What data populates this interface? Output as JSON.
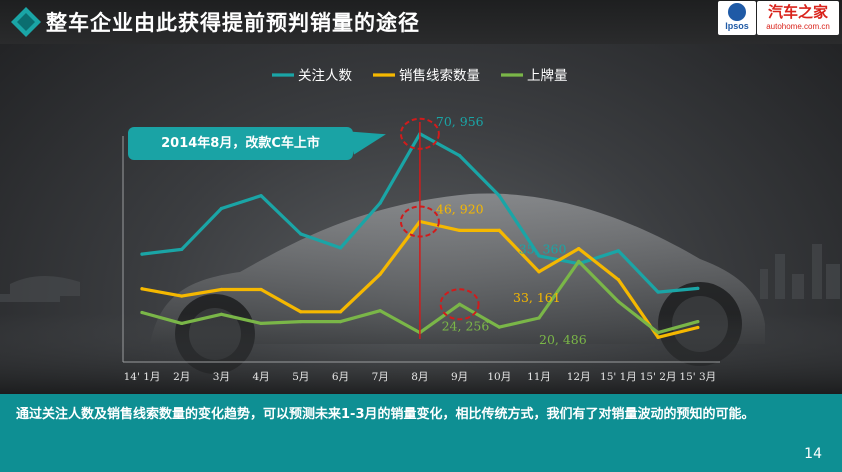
{
  "slide": {
    "title": "整车企业由此获得提前预判销量的途径",
    "page_number": "14"
  },
  "logos": {
    "ipsos": "Ipsos",
    "autohome_name": "汽车之家",
    "autohome_url": "autohome.com.cn"
  },
  "callout": {
    "text": "2014年8月，改款C车上市"
  },
  "footer": {
    "text": "通过关注人数及销售线索数量的变化趋势，可以预测未来1-3月的销量变化，相比传统方式，我们有了对销量波动的预知的可能。"
  },
  "colors": {
    "follow": "#1aa5a6",
    "leads": "#f5b800",
    "registrations": "#7ab648",
    "highlight": "#d21b1b",
    "footer_bg": "#0e8f93"
  },
  "chart_data": {
    "type": "line",
    "title": "",
    "xlabel": "",
    "ylabel": "",
    "legend_position": "top",
    "grid": false,
    "categories": [
      "14' 1月",
      "2月",
      "3月",
      "4月",
      "5月",
      "6月",
      "7月",
      "8月",
      "9月",
      "10月",
      "11月",
      "12月",
      "15' 1月",
      "15' 2月",
      "15' 3月"
    ],
    "series": [
      {
        "name": "关注人数",
        "color": "#1aa5a6",
        "values": [
          38000,
          39300,
          50500,
          54000,
          43500,
          39700,
          52000,
          70956,
          65000,
          54000,
          37500,
          35360,
          38900,
          27600,
          28600
        ]
      },
      {
        "name": "销售线索数量",
        "color": "#f5b800",
        "values": [
          28500,
          26500,
          28300,
          28300,
          22200,
          22200,
          32500,
          46920,
          44500,
          44500,
          33161,
          39500,
          31000,
          15200,
          17900
        ]
      },
      {
        "name": "上牌量",
        "color": "#7ab648",
        "values": [
          22000,
          19000,
          21500,
          19000,
          19500,
          19500,
          22500,
          16500,
          24256,
          18000,
          20486,
          36000,
          25000,
          16500,
          19500
        ]
      }
    ],
    "data_labels": [
      {
        "series": 0,
        "index": 7,
        "text": "70, 956"
      },
      {
        "series": 1,
        "index": 7,
        "text": "46, 920"
      },
      {
        "series": 2,
        "index": 8,
        "text": "24, 256"
      },
      {
        "series": 0,
        "index": 11,
        "text": "35, 360"
      },
      {
        "series": 1,
        "index": 10,
        "text": "33, 161"
      },
      {
        "series": 2,
        "index": 10,
        "text": "20, 486"
      }
    ],
    "highlight_index": 7,
    "circled_points": [
      {
        "series": 0,
        "index": 7
      },
      {
        "series": 1,
        "index": 7
      },
      {
        "series": 2,
        "index": 8
      }
    ]
  }
}
